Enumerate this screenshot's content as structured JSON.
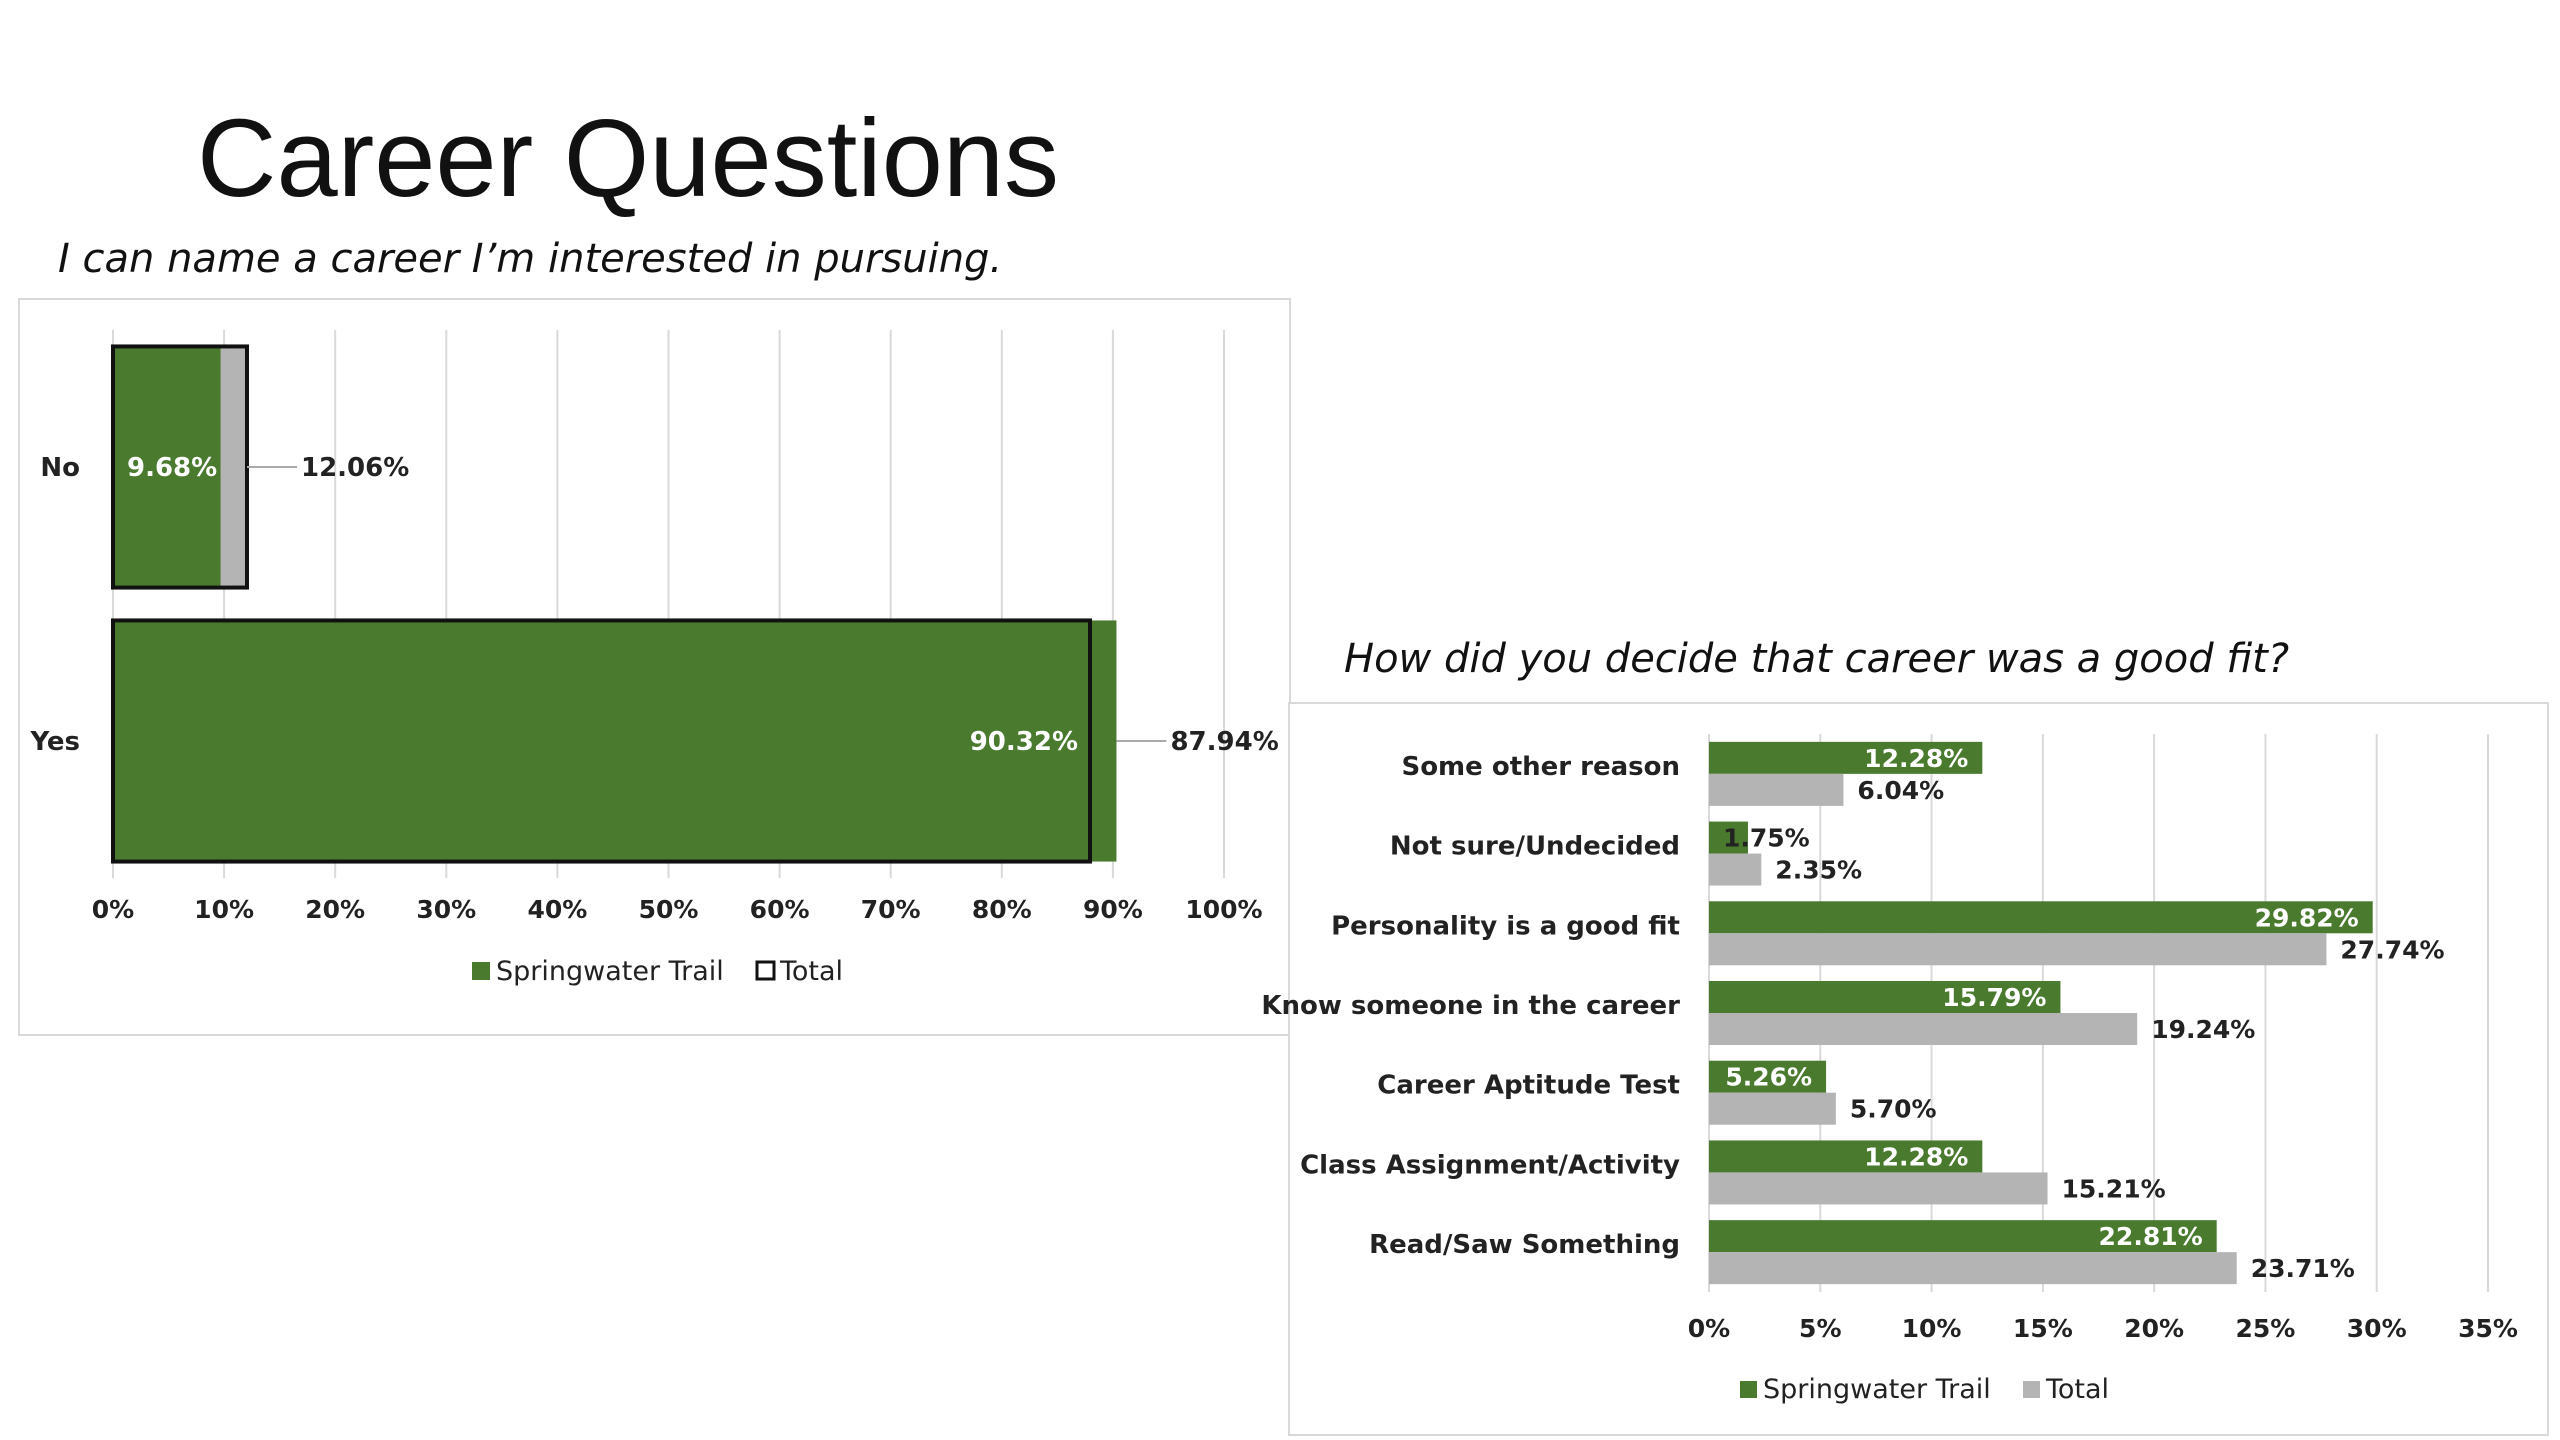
{
  "page": {
    "title": "Career Questions"
  },
  "chart_data": [
    {
      "type": "bar",
      "orientation": "horizontal",
      "title": "I can name a career I’m interested in pursuing.",
      "categories": [
        "No",
        "Yes"
      ],
      "series": [
        {
          "name": "Springwater Trail",
          "values": [
            9.68,
            90.32
          ],
          "labels": [
            "9.68%",
            "90.32%"
          ],
          "color": "#4a7a2e"
        },
        {
          "name": "Total",
          "values": [
            12.06,
            87.94
          ],
          "labels": [
            "12.06%",
            "87.94%"
          ],
          "color": "#b4b4b4",
          "style": "outline overlay"
        }
      ],
      "xlim": [
        0,
        100
      ],
      "xticks": [
        "0%",
        "10%",
        "20%",
        "30%",
        "40%",
        "50%",
        "60%",
        "70%",
        "80%",
        "90%",
        "100%"
      ],
      "grid": true,
      "legend": "bottom"
    },
    {
      "type": "bar",
      "orientation": "horizontal",
      "title": "How did you decide that career was a good fit?",
      "categories": [
        "Some other reason",
        "Not sure/Undecided",
        "Personality is a good fit",
        "Know someone in the career",
        "Career Aptitude Test",
        "Class Assignment/Activity",
        "Read/Saw Something"
      ],
      "series": [
        {
          "name": "Springwater Trail",
          "values": [
            12.28,
            1.75,
            29.82,
            15.79,
            5.26,
            12.28,
            22.81
          ],
          "labels": [
            "12.28%",
            "1.75%",
            "29.82%",
            "15.79%",
            "5.26%",
            "12.28%",
            "22.81%"
          ],
          "color": "#4a7a2e"
        },
        {
          "name": "Total",
          "values": [
            6.04,
            2.35,
            27.74,
            19.24,
            5.7,
            15.21,
            23.71
          ],
          "labels": [
            "6.04%",
            "2.35%",
            "27.74%",
            "19.24%",
            "5.70%",
            "15.21%",
            "23.71%"
          ],
          "color": "#b4b4b4"
        }
      ],
      "xlim": [
        0,
        35
      ],
      "xticks": [
        "0%",
        "5%",
        "10%",
        "15%",
        "20%",
        "25%",
        "30%",
        "35%"
      ],
      "grid": true,
      "legend": "bottom"
    }
  ]
}
